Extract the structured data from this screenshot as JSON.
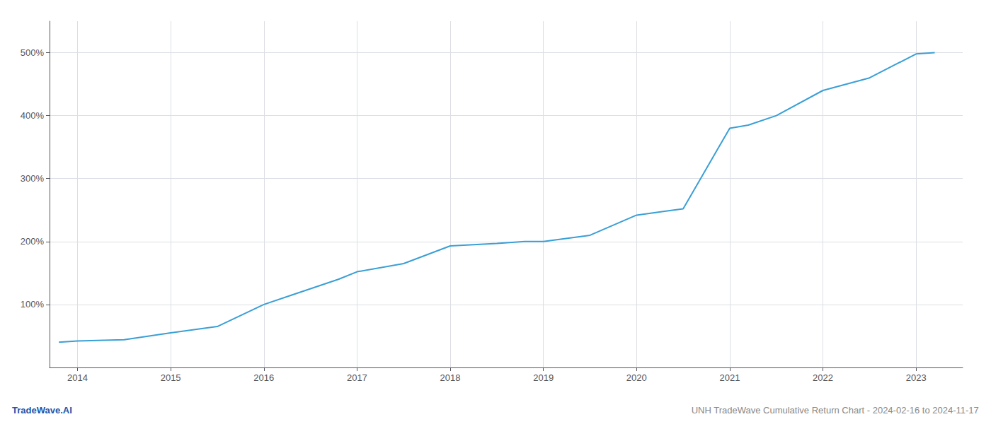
{
  "chart_data": {
    "type": "line",
    "title": "UNH TradeWave Cumulative Return Chart - 2024-02-16 to 2024-11-17",
    "annotations": [
      {
        "text": "TradeWave.AI",
        "color": "#2255aa"
      }
    ],
    "x": [
      2013.8,
      2014.0,
      2014.5,
      2015.0,
      2015.5,
      2016.0,
      2016.3,
      2016.8,
      2017.0,
      2017.5,
      2018.0,
      2018.5,
      2018.8,
      2019.0,
      2019.5,
      2020.0,
      2020.3,
      2020.5,
      2021.0,
      2021.2,
      2021.5,
      2022.0,
      2022.5,
      2023.0,
      2023.2
    ],
    "values": [
      40,
      42,
      44,
      55,
      65,
      100,
      115,
      140,
      152,
      165,
      193,
      197,
      200,
      200,
      210,
      242,
      248,
      252,
      380,
      385,
      400,
      440,
      460,
      498,
      500
    ],
    "color": "#3a9fd5",
    "xlim": [
      2013.7,
      2023.5
    ],
    "xticks": [
      2014,
      2015,
      2016,
      2017,
      2018,
      2019,
      2020,
      2021,
      2022,
      2023
    ],
    "ylim": [
      0,
      550
    ],
    "yticks": [
      {
        "value": 100,
        "label": "100%"
      },
      {
        "value": 200,
        "label": "200%"
      },
      {
        "value": 300,
        "label": "300%"
      },
      {
        "value": 400,
        "label": "400%"
      },
      {
        "value": 500,
        "label": "500%"
      }
    ],
    "grid": true
  }
}
